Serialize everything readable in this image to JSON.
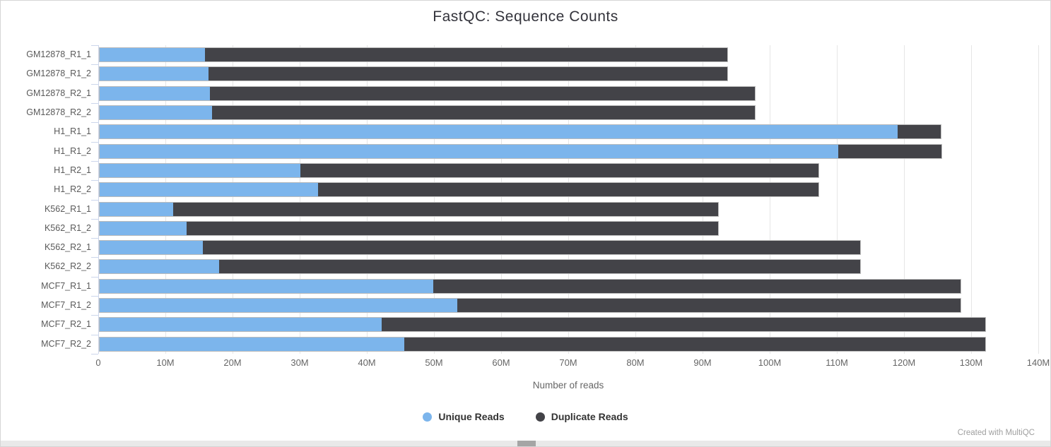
{
  "title": "FastQC: Sequence Counts",
  "credit": "Created with MultiQC",
  "colors": {
    "unique": "#7cb5ec",
    "duplicate": "#434348",
    "gridline": "#e6e6e6",
    "axis_line": "#ccd6eb",
    "tick_label": "#666666",
    "title_text": "#33333b",
    "credit_text": "#9f9f9f"
  },
  "chart_data": {
    "type": "bar",
    "orientation": "horizontal",
    "stacked": true,
    "title": "FastQC: Sequence Counts",
    "xlabel": "Number of reads",
    "ylabel": "",
    "unit": "millions of reads",
    "xlim_millions": [
      0,
      140
    ],
    "grid": true,
    "legend_position": "bottom",
    "xticks": [
      "0",
      "10M",
      "20M",
      "30M",
      "40M",
      "50M",
      "60M",
      "70M",
      "80M",
      "90M",
      "100M",
      "110M",
      "120M",
      "130M",
      "140M"
    ],
    "categories": [
      "GM12878_R1_1",
      "GM12878_R1_2",
      "GM12878_R2_1",
      "GM12878_R2_2",
      "H1_R1_1",
      "H1_R1_2",
      "H1_R2_1",
      "H1_R2_2",
      "K562_R1_1",
      "K562_R1_2",
      "K562_R2_1",
      "K562_R2_2",
      "MCF7_R1_1",
      "MCF7_R1_2",
      "MCF7_R2_1",
      "MCF7_R2_2"
    ],
    "series": [
      {
        "name": "Unique Reads",
        "color": "#7cb5ec",
        "values_millions": [
          15.7,
          16.2,
          16.4,
          16.7,
          118.8,
          110.0,
          29.9,
          32.5,
          10.9,
          12.9,
          15.4,
          17.8,
          49.7,
          53.3,
          42.0,
          45.4
        ]
      },
      {
        "name": "Duplicate Reads",
        "color": "#434348",
        "values_millions": [
          78.0,
          77.5,
          81.4,
          81.1,
          6.7,
          15.6,
          77.4,
          74.8,
          81.4,
          79.4,
          98.1,
          95.7,
          78.7,
          75.1,
          90.1,
          86.7
        ]
      }
    ]
  }
}
